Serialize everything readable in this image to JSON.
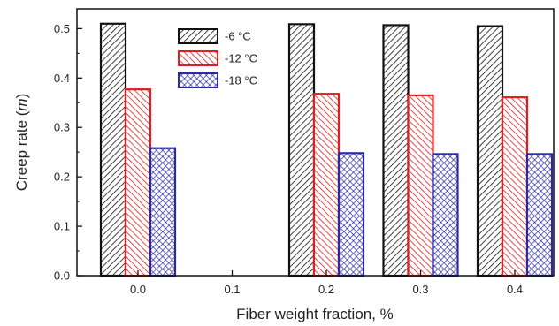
{
  "chart_data": {
    "type": "bar",
    "xlabel": "Fiber weight fraction, %",
    "ylabel_prefix": "Creep rate (",
    "ylabel_var": "m",
    "ylabel_suffix": ")",
    "categories": [
      "0.0",
      "0.1",
      "0.2",
      "0.3",
      "0.4"
    ],
    "ylim": [
      0.0,
      0.54
    ],
    "yticks": [
      "0.0",
      "0.1",
      "0.2",
      "0.3",
      "0.4",
      "0.5"
    ],
    "ytick_values": [
      0.0,
      0.1,
      0.2,
      0.3,
      0.4,
      0.5
    ],
    "grid": false,
    "legend_position": "top-center",
    "series": [
      {
        "name": "-6 °C",
        "values": [
          0.51,
          null,
          0.509,
          0.507,
          0.505
        ],
        "color": "#111111",
        "pattern": "diagonal-right"
      },
      {
        "name": "-12 °C",
        "values": [
          0.377,
          null,
          0.368,
          0.365,
          0.361
        ],
        "color": "#e02020",
        "pattern": "diagonal-left"
      },
      {
        "name": "-18 °C",
        "values": [
          0.258,
          null,
          0.248,
          0.246,
          0.246
        ],
        "color": "#2a2aa8",
        "pattern": "crosshatch"
      }
    ]
  }
}
